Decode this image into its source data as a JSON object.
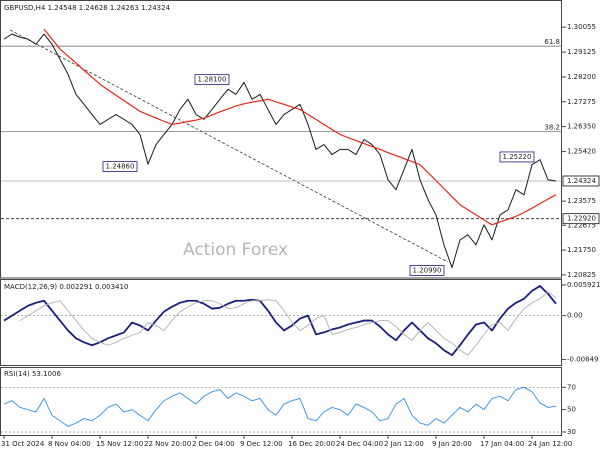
{
  "chart_data": [
    {
      "type": "line",
      "title": "GBPUSD,H4 1.24548 1.24626 1.24263 1.24324",
      "watermark": "Action Forex",
      "ylim": [
        1.2071,
        1.3103
      ],
      "yticks": [
        1.30055,
        1.29125,
        {
          "value": 1.282,
          "label": "1.28200"
        },
        1.27275,
        {
          "value": 1.2635,
          "label": "1.26350"
        },
        {
          "value": 1.2542,
          "label": "1.25420"
        },
        1.23575,
        1.22675,
        {
          "value": 1.2175,
          "label": "1.21750"
        },
        1.20825
      ],
      "series": [
        {
          "color": "#1a1a1a",
          "values": [
            1.2961,
            1.298,
            1.2968,
            1.2961,
            1.2942,
            1.298,
            1.2942,
            1.2886,
            1.283,
            1.2755,
            1.2718,
            1.268,
            1.2643,
            1.2662,
            1.268,
            1.2662,
            1.2643,
            1.2606,
            1.2495,
            1.2568,
            1.2606,
            1.2643,
            1.2699,
            1.2737,
            1.268,
            1.2662,
            1.2699,
            1.2737,
            1.2774,
            1.2755,
            1.28,
            1.2737,
            1.2755,
            1.2699,
            1.2643,
            1.268,
            1.2699,
            1.2718,
            1.2643,
            1.255,
            1.2568,
            1.2531,
            1.255,
            1.255,
            1.2531,
            1.2587,
            1.2568,
            1.2531,
            1.2437,
            1.24,
            1.2475,
            1.255,
            1.2437,
            1.2363,
            1.2306,
            1.2194,
            1.211,
            1.2213,
            1.2232,
            1.2194,
            1.2269,
            1.2213,
            1.2306,
            1.2325,
            1.24,
            1.2381,
            1.2493,
            1.2512,
            1.2437,
            1.24324
          ]
        },
        {
          "color": "#e8251b",
          "values": [
            null,
            null,
            null,
            null,
            null,
            1.2998,
            1.2961,
            1.2924,
            1.2898,
            1.2872,
            1.2845,
            1.2819,
            1.2793,
            1.2772,
            1.2752,
            1.2732,
            1.2712,
            1.2692,
            1.2679,
            1.2667,
            1.2655,
            1.2643,
            1.2648,
            1.2654,
            1.2659,
            1.2667,
            1.2678,
            1.269,
            1.2701,
            1.2712,
            1.272,
            1.2726,
            1.2731,
            1.2737,
            1.2727,
            1.2718,
            1.2708,
            1.2699,
            1.268,
            1.2662,
            1.2643,
            1.2624,
            1.2606,
            1.2594,
            1.2583,
            1.2572,
            1.2561,
            1.255,
            1.2538,
            1.2527,
            1.2516,
            1.2505,
            1.2493,
            1.2464,
            1.2434,
            1.2404,
            1.2374,
            1.2344,
            1.2325,
            1.2306,
            1.2288,
            1.2269,
            1.228,
            1.229,
            1.2301,
            1.2315,
            1.2331,
            1.2348,
            1.2365,
            1.2381
          ]
        }
      ],
      "annotations": [
        {
          "value": 1.281,
          "label": "1.28100"
        },
        {
          "value": 1.2486,
          "label": "1.24860"
        },
        {
          "value": 1.2522,
          "label": "1.25220"
        },
        {
          "value": 1.2099,
          "label": "1.20990"
        }
      ],
      "levels": [
        {
          "value": 1.2935,
          "label": "61.8"
        },
        {
          "value": 1.2617,
          "label": "38.2"
        }
      ],
      "last_price": 1.24324,
      "support": {
        "value": 1.2292,
        "label": "1.22920"
      }
    },
    {
      "type": "line",
      "title": "MACD(12,26,9) 0.002291 0.003410",
      "ylim": [
        -0.00974,
        0.00688
      ],
      "yticks": [
        0.005921,
        {
          "value": 0,
          "label": "0.00"
        },
        -0.00849
      ],
      "dotted_levels": [
        0
      ],
      "series": [
        {
          "color": "#1b1f80",
          "values": [
            -0.00096,
            0,
            0.00096,
            0.00191,
            0.00248,
            0.00287,
            0.00096,
            -0.00096,
            -0.00287,
            -0.00439,
            -0.00516,
            -0.00573,
            -0.00516,
            -0.00439,
            -0.00382,
            -0.00325,
            -0.00134,
            -0.00191,
            -0.00287,
            -0.00096,
            0.00076,
            0.00172,
            0.00248,
            0.00287,
            0.00287,
            0.00229,
            0.00134,
            0.00153,
            0.00229,
            0.00287,
            0.00287,
            0.00306,
            0.00287,
            0.00096,
            -0.00134,
            -0.00287,
            -0.00191,
            -0.00057,
            0,
            -0.00363,
            -0.00325,
            -0.00267,
            -0.00229,
            -0.00172,
            -0.00134,
            -0.00096,
            -0.00096,
            -0.0021,
            -0.00363,
            -0.00478,
            -0.00287,
            -0.00134,
            -0.00287,
            -0.00439,
            -0.00535,
            -0.00669,
            -0.00764,
            -0.00573,
            -0.00363,
            -0.00172,
            -0.00134,
            -0.00287,
            -0.00057,
            0.00134,
            0.00248,
            0.00325,
            0.00478,
            0.00573,
            0.0042,
            0.00229
          ]
        },
        {
          "color": "#b0b0b0",
          "values": [
            null,
            null,
            -0.00096,
            0,
            0.00096,
            0.00191,
            0.00248,
            0.00287,
            0.00096,
            -0.00096,
            -0.00287,
            -0.00439,
            -0.00516,
            -0.00573,
            -0.00516,
            -0.00439,
            -0.00382,
            -0.00325,
            -0.00134,
            -0.00191,
            -0.00287,
            -0.00096,
            0.00076,
            0.00172,
            0.00248,
            0.00287,
            0.00287,
            0.00229,
            0.00134,
            0.00153,
            0.00229,
            0.00287,
            0.00287,
            0.00306,
            0.00287,
            0.00096,
            -0.00134,
            -0.00287,
            -0.00191,
            -0.00057,
            0,
            -0.00363,
            -0.00325,
            -0.00267,
            -0.00229,
            -0.00172,
            -0.00134,
            -0.00096,
            -0.00096,
            -0.0021,
            -0.00363,
            -0.00478,
            -0.00287,
            -0.00134,
            -0.00287,
            -0.00439,
            -0.00535,
            -0.00669,
            -0.00764,
            -0.00573,
            -0.00363,
            -0.00172,
            -0.00134,
            -0.00287,
            -0.00057,
            0.00134,
            0.00248,
            0.00325,
            0.0046,
            0.00341
          ]
        }
      ]
    },
    {
      "type": "line",
      "title": "RSI(14) 53.1006",
      "ylim": [
        26.4,
        87.3
      ],
      "yticks": [
        70,
        50,
        30
      ],
      "dotted_levels": [
        70,
        30
      ],
      "categories": [
        "31 Oct 2024",
        null,
        null,
        null,
        null,
        null,
        "8 Nov 04:00",
        null,
        null,
        null,
        null,
        null,
        "15 Nov 12:00",
        null,
        null,
        null,
        null,
        null,
        "22 Nov 20:00",
        null,
        null,
        null,
        null,
        null,
        "2 Dec 04:00",
        null,
        null,
        null,
        null,
        null,
        "9 Dec 12:00",
        null,
        null,
        null,
        null,
        null,
        "16 Dec 20:00",
        null,
        null,
        null,
        null,
        null,
        "24 Dec 04:00",
        null,
        null,
        null,
        null,
        null,
        "2 Jan 12:00",
        null,
        null,
        null,
        null,
        null,
        "9 Jan 20:00",
        null,
        null,
        null,
        null,
        null,
        "17 Jan 04:00",
        null,
        null,
        null,
        null,
        null,
        "24 Jan 12:00",
        null,
        null,
        null
      ],
      "series": [
        {
          "color": "#2f8fe8",
          "values": [
            55,
            58,
            52,
            50,
            48,
            60,
            45,
            40,
            35,
            38,
            42,
            40,
            45,
            52,
            55,
            48,
            50,
            45,
            40,
            50,
            58,
            62,
            65,
            60,
            55,
            62,
            66,
            68,
            60,
            65,
            62,
            58,
            60,
            50,
            45,
            55,
            58,
            60,
            42,
            40,
            48,
            52,
            50,
            45,
            55,
            52,
            48,
            40,
            42,
            55,
            60,
            45,
            38,
            36,
            42,
            38,
            45,
            52,
            48,
            55,
            50,
            60,
            62,
            58,
            68,
            70,
            66,
            56,
            52,
            53.1006
          ]
        }
      ]
    }
  ]
}
